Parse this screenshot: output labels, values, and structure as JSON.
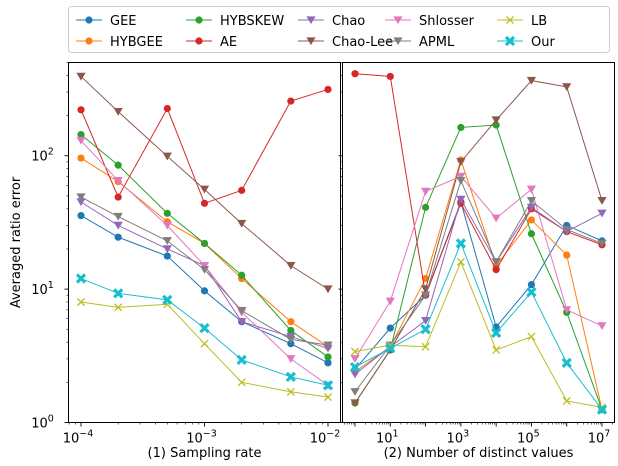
{
  "chart_data": [
    {
      "type": "line",
      "xlabel": "(1) Sampling rate",
      "ylabel": "Averaged ratio error",
      "xscale": "log",
      "yscale": "log",
      "xlim": [
        0.0001,
        0.01
      ],
      "ylim": [
        1,
        500
      ],
      "xticks": [
        {
          "v": 0.0001,
          "b": "10",
          "e": "−4"
        },
        {
          "v": 0.001,
          "b": "10",
          "e": "−3"
        },
        {
          "v": 0.01,
          "b": "10",
          "e": "−2"
        }
      ],
      "yticks": [
        {
          "v": 1,
          "b": "10",
          "e": "0"
        },
        {
          "v": 10,
          "b": "10",
          "e": "1"
        },
        {
          "v": 100,
          "b": "10",
          "e": "2"
        }
      ],
      "x": [
        0.0001,
        0.0002,
        0.0005,
        0.001,
        0.002,
        0.005,
        0.01
      ],
      "series": [
        {
          "name": "GEE",
          "values": [
            35.6,
            24.5,
            17.7,
            9.7,
            5.7,
            3.9,
            2.8
          ]
        },
        {
          "name": "HYBGEE",
          "values": [
            96,
            64,
            32,
            22,
            12,
            5.7,
            3.7
          ]
        },
        {
          "name": "HYBSKEW",
          "values": [
            144,
            85,
            37,
            22,
            12.7,
            4.9,
            3.1
          ]
        },
        {
          "name": "AE",
          "values": [
            221,
            49,
            226,
            44,
            55,
            257,
            314
          ]
        },
        {
          "name": "Chao",
          "values": [
            45,
            30,
            20,
            15,
            5.7,
            4.4,
            3.6
          ]
        },
        {
          "name": "Chao-Lee",
          "values": [
            393,
            214,
            99,
            56,
            31,
            15,
            10
          ]
        },
        {
          "name": "Shlosser",
          "values": [
            130,
            65,
            30,
            15,
            6.7,
            3.0,
            1.9
          ]
        },
        {
          "name": "APML",
          "values": [
            49,
            35,
            23,
            14,
            6.9,
            4.2,
            3.8
          ]
        },
        {
          "name": "LB",
          "values": [
            8,
            7.3,
            7.7,
            3.9,
            2.0,
            1.7,
            1.55
          ]
        },
        {
          "name": "Our",
          "values": [
            12,
            9.3,
            8.3,
            5.1,
            2.95,
            2.2,
            1.9
          ]
        }
      ]
    },
    {
      "type": "line",
      "xlabel": "(2) Number of distinct values",
      "xscale": "log",
      "yscale": "log",
      "xlim": [
        1,
        10000000
      ],
      "ylim": [
        1,
        500
      ],
      "xticks": [
        {
          "v": 10,
          "b": "10",
          "e": "1"
        },
        {
          "v": 1000,
          "b": "10",
          "e": "3"
        },
        {
          "v": 100000,
          "b": "10",
          "e": "5"
        },
        {
          "v": 10000000,
          "b": "10",
          "e": "7"
        }
      ],
      "x": [
        1,
        10,
        100,
        1000,
        10000,
        100000,
        1000000,
        10000000
      ],
      "series": [
        {
          "name": "GEE",
          "values": [
            2.5,
            5.1,
            9,
            45,
            5.2,
            10.8,
            30,
            23
          ]
        },
        {
          "name": "HYBGEE",
          "values": [
            2.4,
            3.7,
            12,
            93,
            15,
            33,
            18,
            1.25
          ]
        },
        {
          "name": "HYBSKEW",
          "values": [
            1.4,
            3.5,
            41,
            163,
            170,
            26,
            6.7,
            1.25
          ]
        },
        {
          "name": "AE",
          "values": [
            412,
            393,
            9,
            44,
            14,
            40,
            27,
            21.5
          ]
        },
        {
          "name": "Chao",
          "values": [
            2.3,
            3.7,
            5.8,
            47,
            16,
            41,
            27,
            37
          ]
        },
        {
          "name": "Chao-Lee",
          "values": [
            1.4,
            3.5,
            10,
            90,
            185,
            366,
            328,
            46
          ]
        },
        {
          "name": "Shlosser",
          "values": [
            3,
            8.1,
            54,
            70,
            34,
            56,
            7,
            5.3
          ]
        },
        {
          "name": "APML",
          "values": [
            1.7,
            3.8,
            9,
            65,
            16,
            46,
            28,
            22
          ]
        },
        {
          "name": "LB",
          "values": [
            3.4,
            3.8,
            3.7,
            16,
            3.5,
            4.4,
            1.45,
            1.3
          ]
        },
        {
          "name": "Our",
          "values": [
            2.6,
            3.6,
            5,
            22,
            4.7,
            9.5,
            2.8,
            1.25
          ]
        }
      ]
    }
  ],
  "legend": {
    "placement": "top",
    "entries": [
      {
        "name": "GEE",
        "color": "#1f77b4",
        "marker": "circle"
      },
      {
        "name": "HYBGEE",
        "color": "#ff7f0e",
        "marker": "circle"
      },
      {
        "name": "HYBSKEW",
        "color": "#2ca02c",
        "marker": "circle"
      },
      {
        "name": "AE",
        "color": "#d62728",
        "marker": "circle"
      },
      {
        "name": "Chao",
        "color": "#9467bd",
        "marker": "triangle-down"
      },
      {
        "name": "Chao-Lee",
        "color": "#8c564b",
        "marker": "triangle-down"
      },
      {
        "name": "Shlosser",
        "color": "#e377c2",
        "marker": "triangle-down"
      },
      {
        "name": "APML",
        "color": "#7f7f7f",
        "marker": "triangle-down"
      },
      {
        "name": "LB",
        "color": "#bcbd22",
        "marker": "x"
      },
      {
        "name": "Our",
        "color": "#17becf",
        "marker": "x-bold"
      }
    ]
  }
}
